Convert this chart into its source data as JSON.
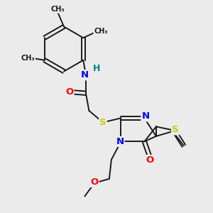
{
  "background_color": "#ebebeb",
  "bond_color": "#1a1a1a",
  "atom_colors": {
    "N": "#0000ff",
    "O": "#ff0000",
    "S": "#cccc00",
    "H": "#008080",
    "C": "#1a1a1a"
  },
  "figsize": [
    3.0,
    3.0
  ],
  "dpi": 100,
  "xlim": [
    0,
    10
  ],
  "ylim": [
    0,
    10
  ]
}
